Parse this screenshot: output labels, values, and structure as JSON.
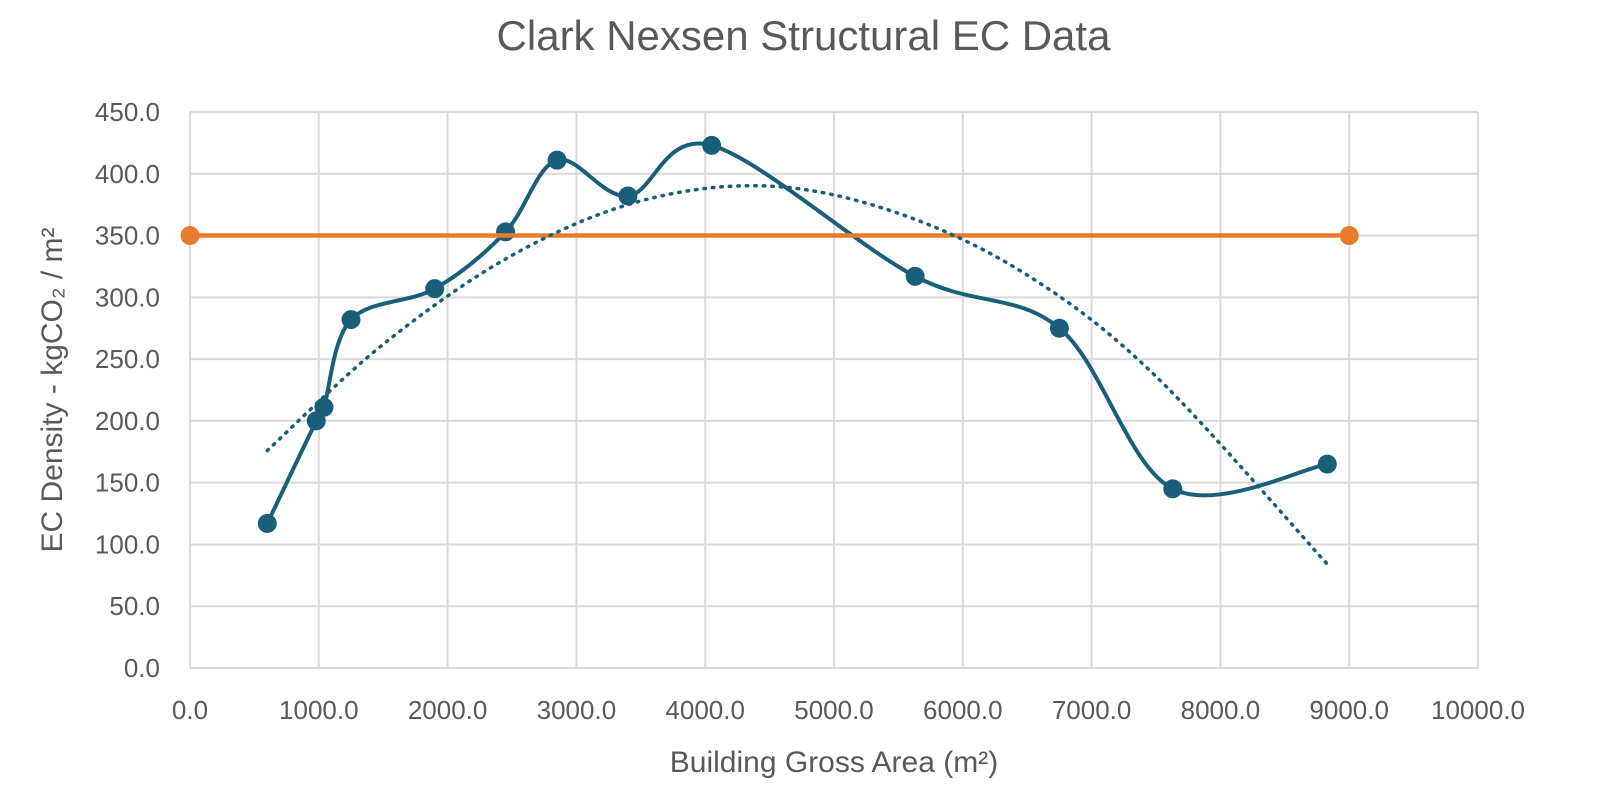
{
  "chart_data": {
    "type": "scatter",
    "title": "Clark Nexsen Structural EC Data",
    "xlabel": "Building Gross Area (m²)",
    "ylabel": "EC Density - kgCO₂ / m²",
    "xlim": [
      0,
      10000
    ],
    "ylim": [
      0,
      450
    ],
    "x_ticks": [
      0,
      1000,
      2000,
      3000,
      4000,
      5000,
      6000,
      7000,
      8000,
      9000,
      10000
    ],
    "y_ticks": [
      0,
      50,
      100,
      150,
      200,
      250,
      300,
      350,
      400,
      450
    ],
    "x_tick_labels": [
      "0.0",
      "1000.0",
      "2000.0",
      "3000.0",
      "4000.0",
      "5000.0",
      "6000.0",
      "7000.0",
      "8000.0",
      "9000.0",
      "10000.0"
    ],
    "y_tick_labels": [
      "0.0",
      "50.0",
      "100.0",
      "150.0",
      "200.0",
      "250.0",
      "300.0",
      "350.0",
      "400.0",
      "450.0"
    ],
    "grid": true,
    "series": [
      {
        "color": "#1a5f7a",
        "style": "smooth-line-with-markers",
        "points": [
          {
            "x": 600,
            "y": 117
          },
          {
            "x": 980,
            "y": 200
          },
          {
            "x": 1040,
            "y": 211
          },
          {
            "x": 1250,
            "y": 282
          },
          {
            "x": 1900,
            "y": 307
          },
          {
            "x": 2450,
            "y": 353
          },
          {
            "x": 2850,
            "y": 411
          },
          {
            "x": 3400,
            "y": 382
          },
          {
            "x": 4050,
            "y": 423
          },
          {
            "x": 5630,
            "y": 317
          },
          {
            "x": 6750,
            "y": 275
          },
          {
            "x": 7630,
            "y": 145
          },
          {
            "x": 8830,
            "y": 165
          }
        ]
      },
      {
        "color": "#e97b2e",
        "style": "line-with-markers",
        "points": [
          {
            "x": 0,
            "y": 350
          },
          {
            "x": 9000,
            "y": 350
          }
        ]
      },
      {
        "color": "#1a5f7a",
        "style": "dotted-trendline",
        "trend": "polynomial-2",
        "points": [
          {
            "x": 600,
            "y": 176
          },
          {
            "x": 1500,
            "y": 262
          },
          {
            "x": 2500,
            "y": 334
          },
          {
            "x": 3500,
            "y": 378
          },
          {
            "x": 4500,
            "y": 390
          },
          {
            "x": 5500,
            "y": 368
          },
          {
            "x": 6500,
            "y": 318
          },
          {
            "x": 7500,
            "y": 236
          },
          {
            "x": 8830,
            "y": 84
          }
        ]
      }
    ]
  }
}
